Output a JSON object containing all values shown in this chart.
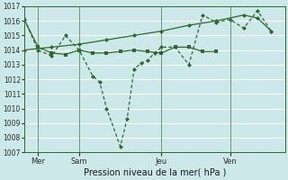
{
  "xlabel": "Pression niveau de la mer( hPa )",
  "bg_color": "#cce8e8",
  "grid_color": "#ffffff",
  "line_color": "#2d6a2d",
  "ylim": [
    1007,
    1017
  ],
  "yticks": [
    1007,
    1008,
    1009,
    1010,
    1011,
    1012,
    1013,
    1014,
    1015,
    1016,
    1017
  ],
  "xtick_labels": [
    "Mer",
    "Sam",
    "Jeu",
    "Ven"
  ],
  "xtick_positions": [
    1,
    4,
    10,
    15
  ],
  "vline_positions": [
    1,
    4,
    10,
    15
  ],
  "xlim": [
    0,
    19
  ],
  "line_rising_x": [
    0,
    2,
    4,
    6,
    8,
    10,
    12,
    14,
    16,
    17,
    18
  ],
  "line_rising_y": [
    1014.0,
    1014.2,
    1014.4,
    1014.7,
    1015.0,
    1015.3,
    1015.7,
    1016.0,
    1016.4,
    1016.2,
    1015.3
  ],
  "line_flat_x": [
    0,
    1,
    2,
    3,
    4,
    5,
    6,
    7,
    8,
    9,
    10,
    11,
    12,
    13,
    14
  ],
  "line_flat_y": [
    1016.1,
    1014.2,
    1013.8,
    1013.7,
    1014.0,
    1013.8,
    1013.8,
    1013.9,
    1014.0,
    1013.9,
    1013.8,
    1014.2,
    1014.2,
    1013.9,
    1013.9
  ],
  "line_jagged_x": [
    0,
    1,
    2,
    3,
    4,
    5,
    5.5,
    6,
    7,
    7.5,
    8,
    8.5,
    9,
    9.5,
    10,
    11,
    12,
    13,
    14,
    15,
    16,
    17,
    18
  ],
  "line_jagged_y": [
    1016.1,
    1014.0,
    1013.6,
    1015.0,
    1014.0,
    1012.2,
    1011.8,
    1010.0,
    1007.4,
    1009.3,
    1012.7,
    1013.1,
    1013.3,
    1013.8,
    1014.2,
    1014.2,
    1013.0,
    1016.4,
    1015.9,
    1016.1,
    1015.5,
    1016.7,
    1015.3
  ],
  "marker_size": 2.5,
  "line_width": 0.9,
  "tick_fontsize": 5.5,
  "xlabel_fontsize": 7
}
